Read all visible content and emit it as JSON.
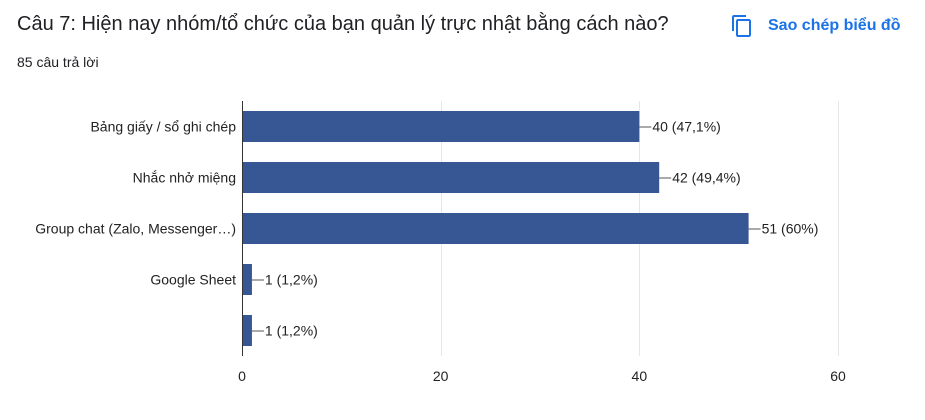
{
  "question": {
    "title": "Câu 7: Hiện nay nhóm/tổ chức của bạn quản lý trực nhật bằng cách nào?",
    "response_count": "85 câu trả lời"
  },
  "copy_button": {
    "label": "Sao chép biểu đồ",
    "icon": "copy-icon",
    "color": "#1a73e8"
  },
  "colors": {
    "bar": "#365694",
    "grid": "#e6e6e6",
    "axis": "#333333"
  },
  "chart_data": {
    "type": "bar",
    "orientation": "horizontal",
    "categories": [
      "Bảng giấy / sổ ghi chép",
      "Nhắc nhở miệng",
      "Group chat (Zalo, Messenger…)",
      "Google Sheet",
      ""
    ],
    "values": [
      40,
      42,
      51,
      1,
      1
    ],
    "value_labels": [
      "40 (47,1%)",
      "42 (49,4%)",
      "51 (60%)",
      "1 (1,2%)",
      "1 (1,2%)"
    ],
    "xlim": [
      0,
      60
    ],
    "x_ticks": [
      "0",
      "20",
      "40",
      "60"
    ],
    "x_tick_values": [
      0,
      20,
      40,
      60
    ],
    "grid": true,
    "xlabel": "",
    "ylabel": ""
  }
}
